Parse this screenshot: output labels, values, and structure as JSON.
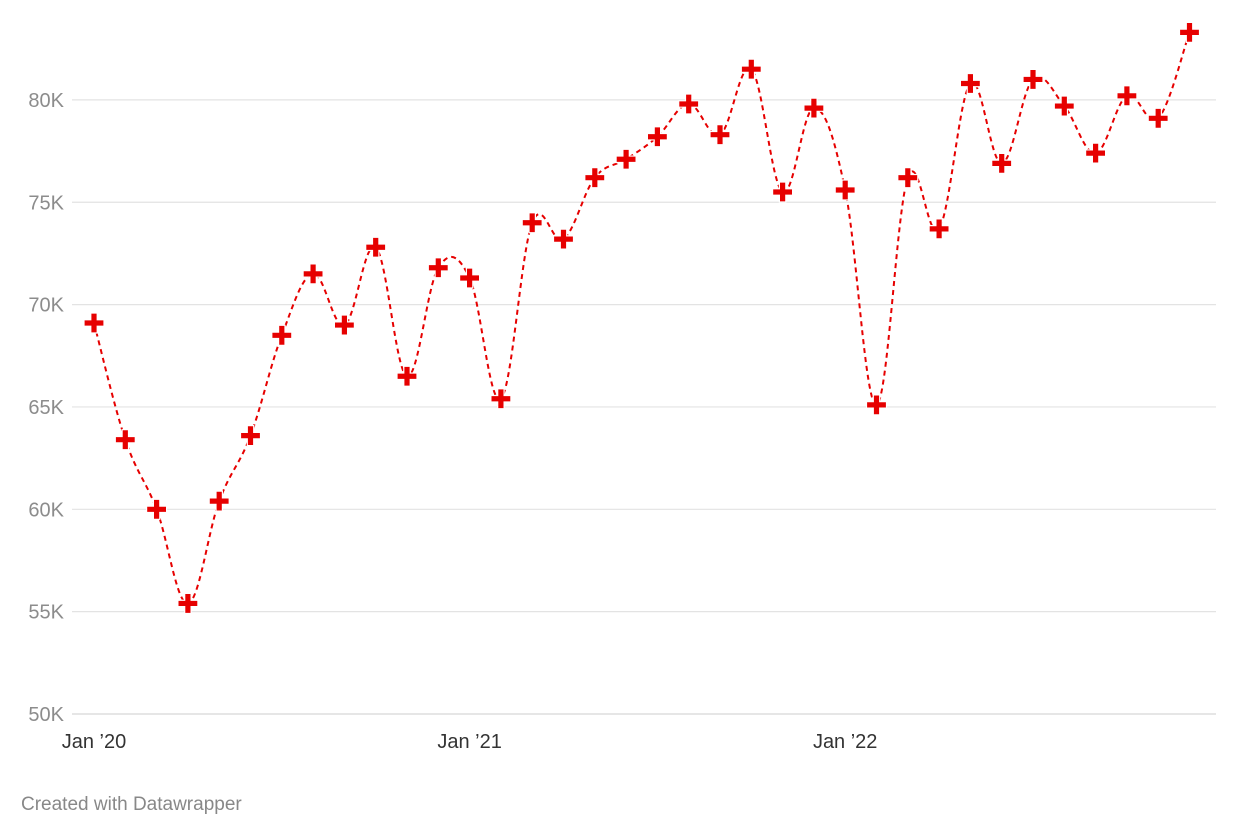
{
  "credit": "Created with Datawrapper",
  "colors": {
    "series": "#e60000",
    "gridline": "#e3e3e3",
    "y_tick_text": "#8c8c8c",
    "x_tick_text": "#333333"
  },
  "chart_data": {
    "type": "line",
    "title": "",
    "xlabel": "",
    "ylabel": "",
    "line_style": "dashed",
    "marker": "cross",
    "grid": true,
    "legend": "none",
    "ylim": [
      50000,
      84000
    ],
    "y_ticks": [
      {
        "value": 50000,
        "label": "50K"
      },
      {
        "value": 55000,
        "label": "55K"
      },
      {
        "value": 60000,
        "label": "60K"
      },
      {
        "value": 65000,
        "label": "65K"
      },
      {
        "value": 70000,
        "label": "70K"
      },
      {
        "value": 75000,
        "label": "75K"
      },
      {
        "value": 80000,
        "label": "80K"
      }
    ],
    "x_ticks": [
      {
        "value": "2020-01",
        "label": "Jan ’20"
      },
      {
        "value": "2021-01",
        "label": "Jan ’21"
      },
      {
        "value": "2022-01",
        "label": "Jan ’22"
      }
    ],
    "series": [
      {
        "points": [
          {
            "x": "2020-01",
            "y": 69100
          },
          {
            "x": "2020-02",
            "y": 63400
          },
          {
            "x": "2020-03",
            "y": 60000
          },
          {
            "x": "2020-04",
            "y": 55400
          },
          {
            "x": "2020-05",
            "y": 60400
          },
          {
            "x": "2020-06",
            "y": 63600
          },
          {
            "x": "2020-07",
            "y": 68500
          },
          {
            "x": "2020-08",
            "y": 71500
          },
          {
            "x": "2020-09",
            "y": 69000
          },
          {
            "x": "2020-10",
            "y": 72800
          },
          {
            "x": "2020-11",
            "y": 66500
          },
          {
            "x": "2020-12",
            "y": 71800
          },
          {
            "x": "2021-01",
            "y": 71300
          },
          {
            "x": "2021-02",
            "y": 65400
          },
          {
            "x": "2021-03",
            "y": 74000
          },
          {
            "x": "2021-04",
            "y": 73200
          },
          {
            "x": "2021-05",
            "y": 76200
          },
          {
            "x": "2021-06",
            "y": 77100
          },
          {
            "x": "2021-07",
            "y": 78200
          },
          {
            "x": "2021-08",
            "y": 79800
          },
          {
            "x": "2021-09",
            "y": 78300
          },
          {
            "x": "2021-10",
            "y": 81500
          },
          {
            "x": "2021-11",
            "y": 75500
          },
          {
            "x": "2021-12",
            "y": 79600
          },
          {
            "x": "2022-01",
            "y": 75600
          },
          {
            "x": "2022-02",
            "y": 65100
          },
          {
            "x": "2022-03",
            "y": 76200
          },
          {
            "x": "2022-04",
            "y": 73700
          },
          {
            "x": "2022-05",
            "y": 80800
          },
          {
            "x": "2022-06",
            "y": 76900
          },
          {
            "x": "2022-07",
            "y": 81000
          },
          {
            "x": "2022-08",
            "y": 79700
          },
          {
            "x": "2022-09",
            "y": 77400
          },
          {
            "x": "2022-10",
            "y": 80200
          },
          {
            "x": "2022-11",
            "y": 79100
          },
          {
            "x": "2022-12",
            "y": 83300
          }
        ]
      }
    ]
  }
}
